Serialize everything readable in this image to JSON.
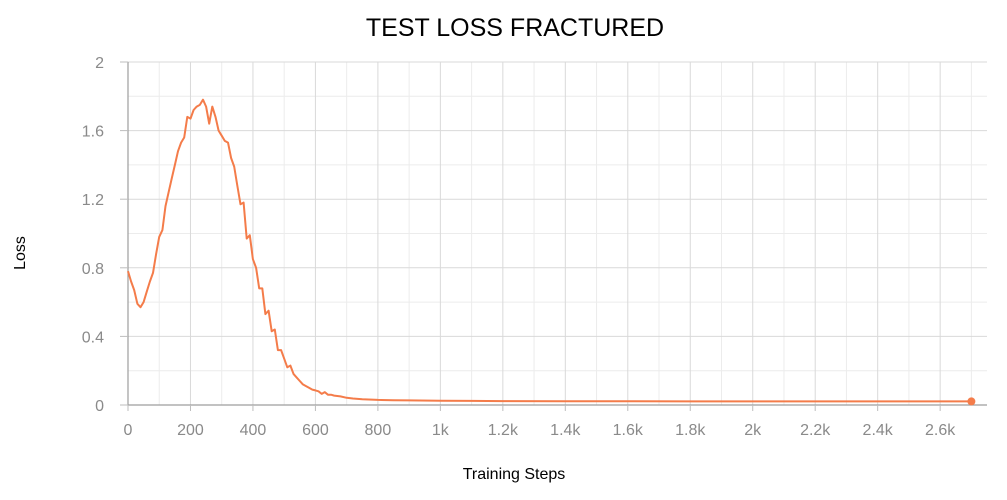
{
  "chart_data": {
    "type": "line",
    "title": "TEST LOSS FRACTURED",
    "xlabel": "Training Steps",
    "ylabel": "Loss",
    "xlim": [
      0,
      2750
    ],
    "ylim": [
      0,
      2
    ],
    "x_ticks": [
      0,
      200,
      400,
      600,
      800,
      1000,
      1200,
      1400,
      1600,
      1800,
      2000,
      2200,
      2400,
      2600
    ],
    "x_tick_labels": [
      "0",
      "200",
      "400",
      "600",
      "800",
      "1k",
      "1.2k",
      "1.4k",
      "1.6k",
      "1.8k",
      "2k",
      "2.2k",
      "2.4k",
      "2.6k"
    ],
    "y_ticks": [
      0,
      0.4,
      0.8,
      1.2,
      1.6,
      2
    ],
    "y_tick_labels": [
      "0",
      "0.4",
      "0.8",
      "1.2",
      "1.6",
      "2"
    ],
    "grid": true,
    "line_color": "#f47c4a",
    "series": [
      {
        "x": [
          0,
          10,
          20,
          30,
          40,
          50,
          60,
          70,
          80,
          90,
          100,
          110,
          120,
          130,
          140,
          150,
          160,
          170,
          180,
          190,
          200,
          210,
          220,
          230,
          240,
          250,
          260,
          270,
          280,
          290,
          300,
          310,
          320,
          330,
          340,
          350,
          360,
          370,
          380,
          390,
          400,
          410,
          420,
          430,
          440,
          450,
          460,
          470,
          480,
          490,
          500,
          510,
          520,
          530,
          540,
          550,
          560,
          570,
          580,
          590,
          600,
          610,
          620,
          630,
          640,
          650,
          660,
          680,
          700,
          720,
          750,
          800,
          850,
          900,
          1000,
          1100,
          1200,
          1400,
          1600,
          1800,
          2000,
          2200,
          2400,
          2600,
          2700
        ],
        "y": [
          0.78,
          0.72,
          0.67,
          0.59,
          0.57,
          0.6,
          0.66,
          0.72,
          0.77,
          0.88,
          0.98,
          1.02,
          1.16,
          1.24,
          1.32,
          1.4,
          1.48,
          1.53,
          1.56,
          1.68,
          1.67,
          1.72,
          1.74,
          1.75,
          1.78,
          1.74,
          1.64,
          1.74,
          1.68,
          1.6,
          1.57,
          1.54,
          1.53,
          1.44,
          1.39,
          1.28,
          1.17,
          1.18,
          0.97,
          0.99,
          0.85,
          0.8,
          0.68,
          0.68,
          0.53,
          0.55,
          0.43,
          0.44,
          0.32,
          0.32,
          0.27,
          0.22,
          0.23,
          0.18,
          0.16,
          0.14,
          0.12,
          0.11,
          0.1,
          0.09,
          0.085,
          0.08,
          0.065,
          0.075,
          0.06,
          0.06,
          0.055,
          0.05,
          0.042,
          0.038,
          0.034,
          0.03,
          0.028,
          0.027,
          0.025,
          0.024,
          0.023,
          0.022,
          0.022,
          0.021,
          0.021,
          0.021,
          0.021,
          0.021,
          0.021
        ]
      }
    ]
  }
}
